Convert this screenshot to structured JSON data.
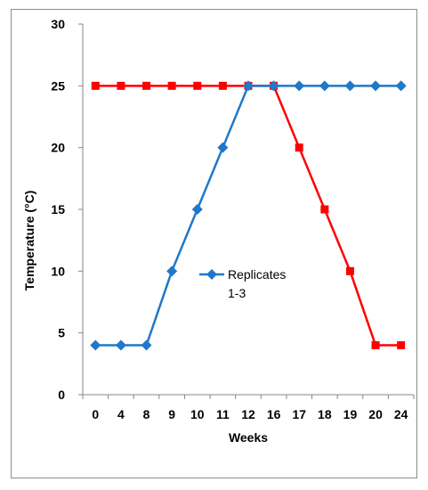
{
  "chart_data": {
    "type": "line",
    "categories": [
      "0",
      "4",
      "8",
      "9",
      "10",
      "11",
      "12",
      "16",
      "17",
      "18",
      "19",
      "20",
      "24"
    ],
    "series": [
      {
        "name": "Replicates 1-3",
        "legend_lines": [
          "Replicates",
          "1-3"
        ],
        "color": "#1f78c8",
        "marker": "diamond",
        "values": [
          4,
          4,
          4,
          10,
          15,
          20,
          25,
          25,
          25,
          25,
          25,
          25,
          25
        ]
      },
      {
        "color": "#ff0000",
        "marker": "square",
        "values": [
          25,
          25,
          25,
          25,
          25,
          25,
          25,
          25,
          20,
          15,
          10,
          4,
          4
        ]
      }
    ],
    "xlabel": "Weeks",
    "ylabel": "Temperature (°C)",
    "ylim": [
      0,
      30
    ],
    "yticks": [
      "0",
      "5",
      "10",
      "15",
      "20",
      "25",
      "30"
    ],
    "grid": false,
    "legend_position": "center"
  }
}
